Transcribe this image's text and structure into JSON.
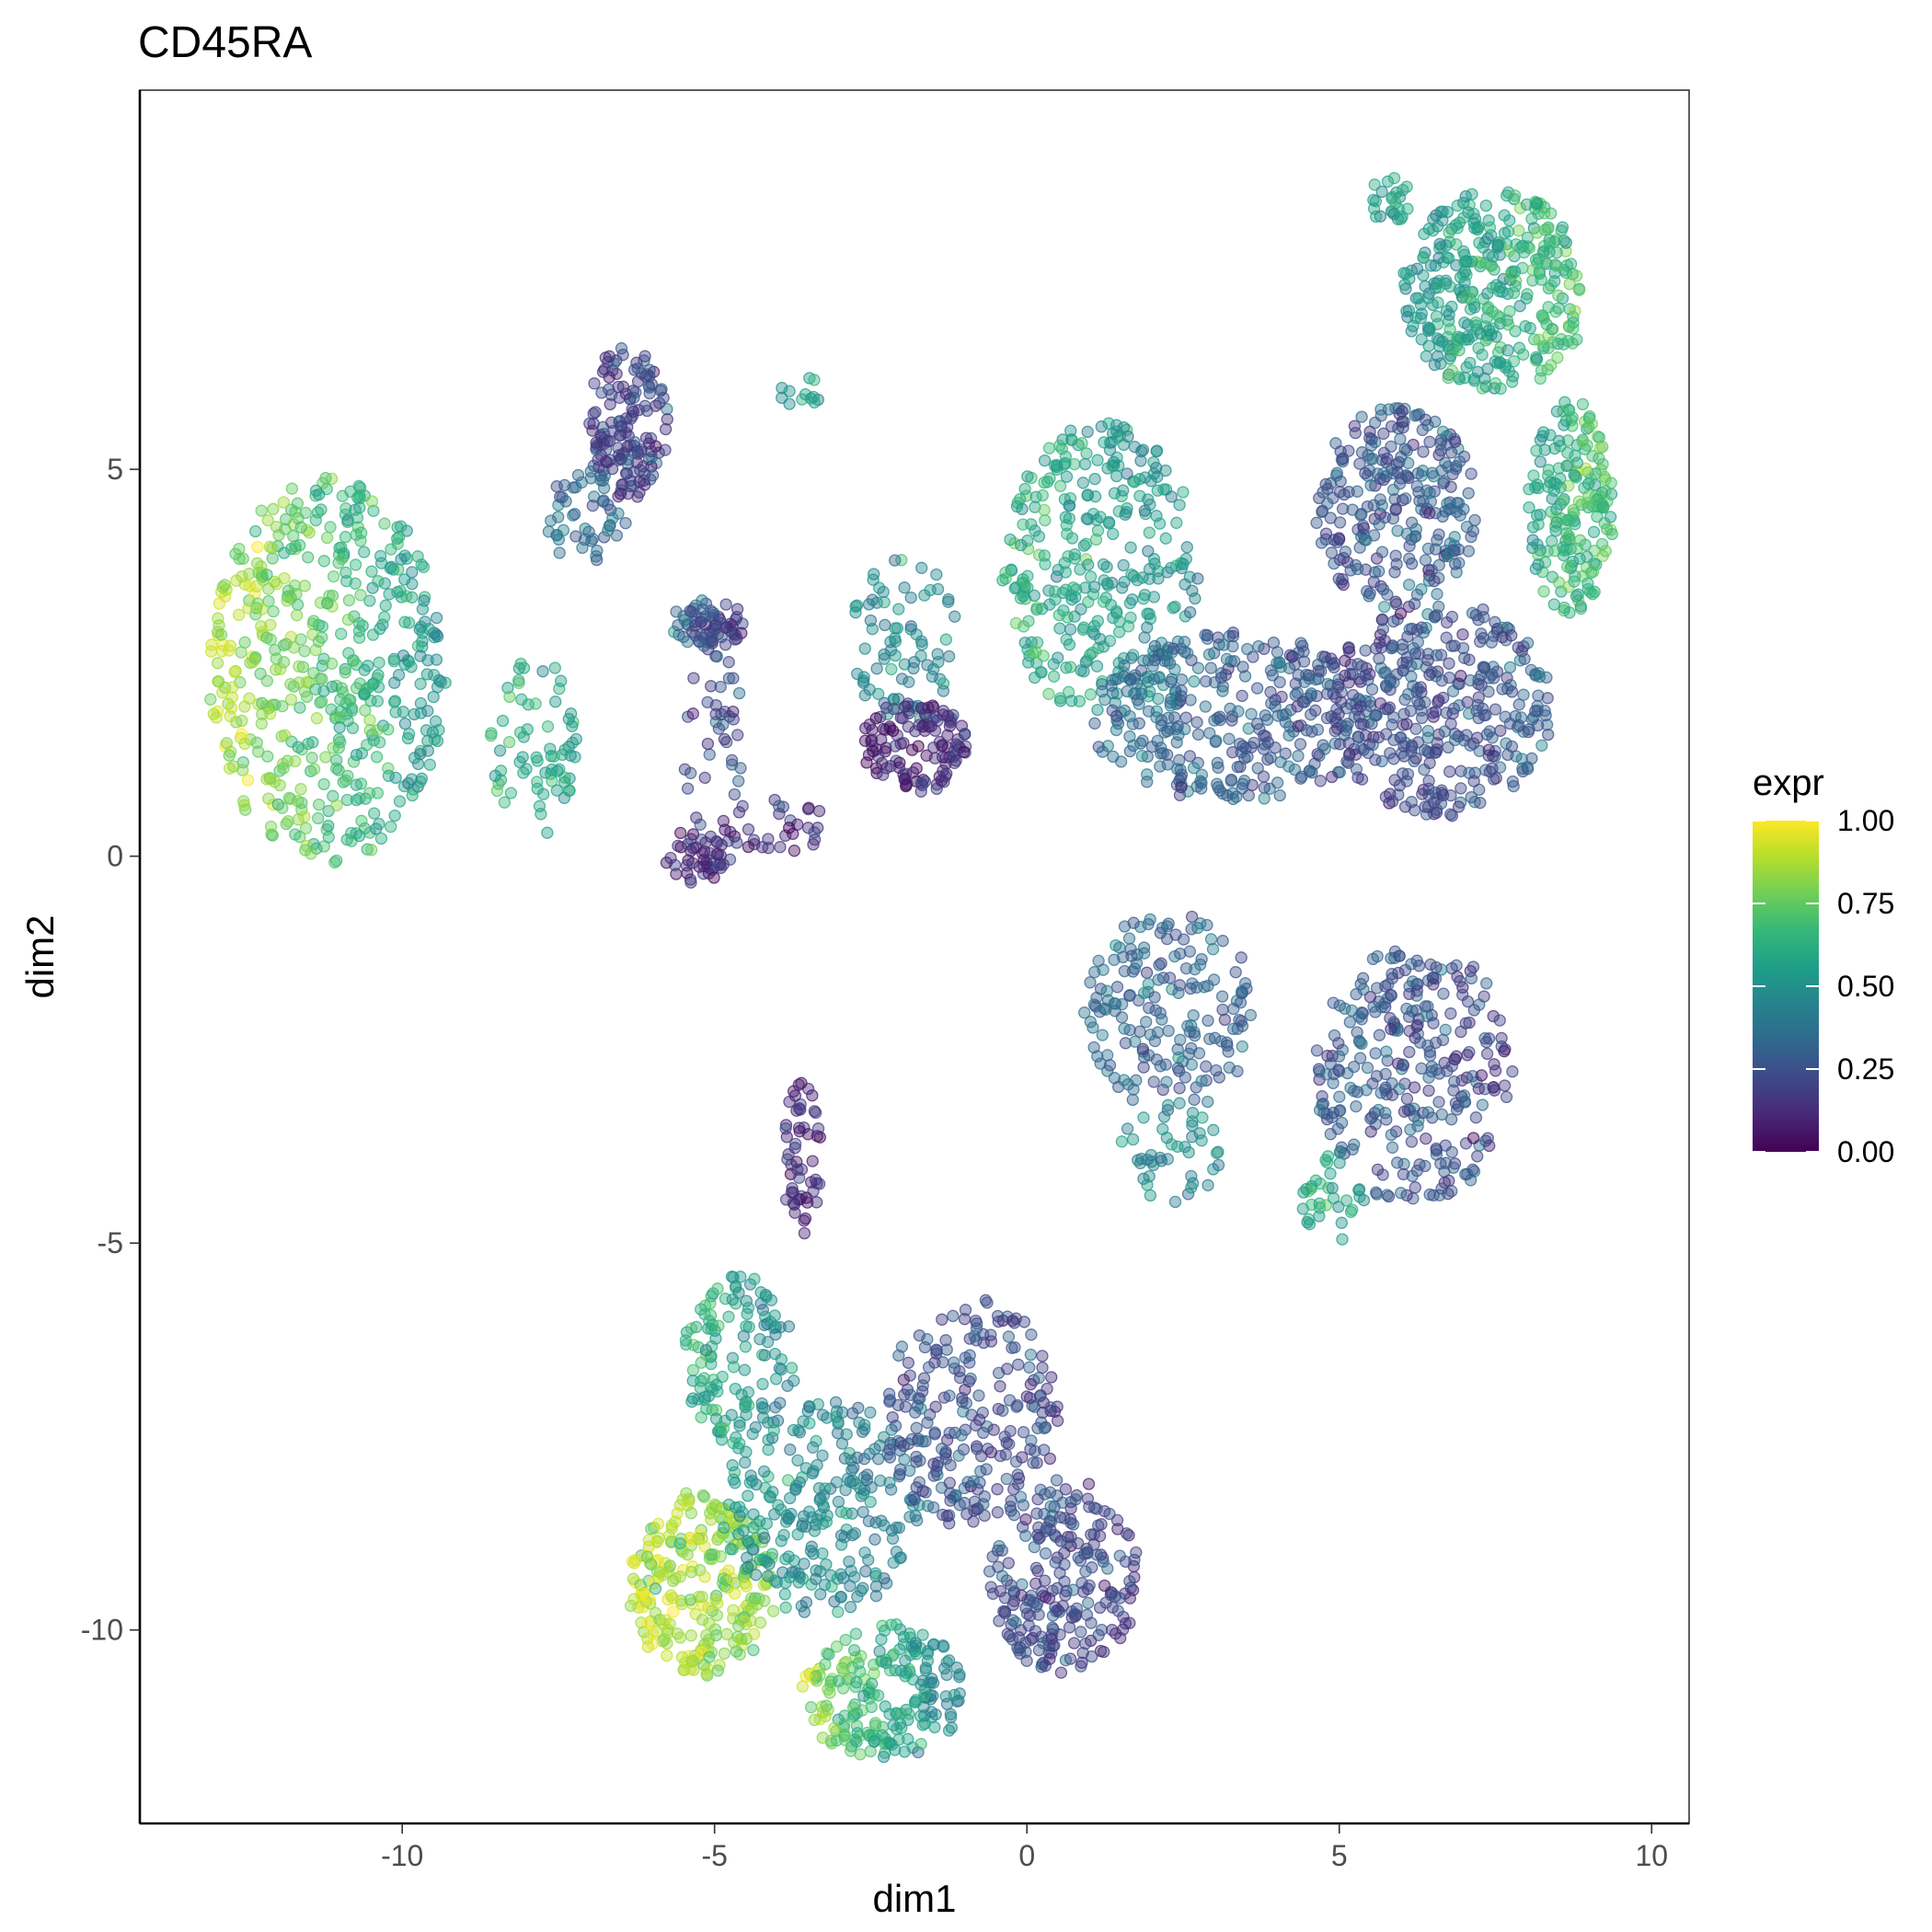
{
  "chart_data": {
    "type": "scatter",
    "title": "CD45RA",
    "xlabel": "dim1",
    "ylabel": "dim2",
    "xlim": [
      -14.2,
      10.6
    ],
    "ylim": [
      -12.5,
      9.9
    ],
    "x_ticks": [
      -10,
      -5,
      0,
      5,
      10
    ],
    "x_tick_labels": [
      "-10",
      "-5",
      "0",
      "5",
      "10"
    ],
    "y_ticks": [
      -10,
      -5,
      0,
      5
    ],
    "y_tick_labels": [
      "-10",
      "-5",
      "0",
      "5"
    ],
    "grid": false,
    "legend": {
      "title": "expr",
      "position": "right",
      "colormap": "viridis",
      "range": [
        0,
        1
      ],
      "ticks": [
        0,
        0.25,
        0.5,
        0.75,
        1
      ],
      "tick_labels": [
        "0.00",
        "0.25",
        "0.50",
        "0.75",
        "1.00"
      ]
    },
    "colors": {
      "viridis": [
        "#440154",
        "#482878",
        "#3e4989",
        "#31688e",
        "#26828e",
        "#1f9e89",
        "#35b779",
        "#6ece58",
        "#b5de2b",
        "#fde725"
      ]
    },
    "clusters": [
      {
        "cx": -11.2,
        "cy": 2.4,
        "rx": 1.9,
        "ry": 2.5,
        "n": 520,
        "expr_left": 0.9,
        "expr_right": 0.5
      },
      {
        "cx": -7.9,
        "cy": 1.4,
        "rx": 0.7,
        "ry": 1.2,
        "n": 70,
        "expr_left": 0.65,
        "expr_right": 0.55
      },
      {
        "cx": -6.4,
        "cy": 5.6,
        "rx": 0.65,
        "ry": 1.0,
        "n": 150,
        "expr_left": 0.2,
        "expr_right": 0.2
      },
      {
        "cx": -7.1,
        "cy": 4.4,
        "rx": 0.7,
        "ry": 0.6,
        "n": 50,
        "expr_left": 0.35,
        "expr_right": 0.35
      },
      {
        "cx": -5.1,
        "cy": 3.0,
        "rx": 0.6,
        "ry": 0.35,
        "n": 70,
        "expr_left": 0.4,
        "expr_right": 0.1
      },
      {
        "cx": -5.0,
        "cy": 1.2,
        "rx": 0.5,
        "ry": 1.5,
        "n": 45,
        "expr_left": 0.22,
        "expr_right": 0.22
      },
      {
        "cx": -5.3,
        "cy": 0.0,
        "rx": 0.5,
        "ry": 0.35,
        "n": 45,
        "expr_left": 0.12,
        "expr_right": 0.12
      },
      {
        "cx": -4.0,
        "cy": 0.4,
        "rx": 0.9,
        "ry": 0.35,
        "n": 30,
        "expr_left": 0.15,
        "expr_right": 0.15
      },
      {
        "cx": -3.6,
        "cy": 6.0,
        "rx": 0.4,
        "ry": 0.2,
        "n": 12,
        "expr_left": 0.5,
        "expr_right": 0.6
      },
      {
        "cx": -2.0,
        "cy": 2.8,
        "rx": 0.9,
        "ry": 1.1,
        "n": 80,
        "expr_left": 0.5,
        "expr_right": 0.45
      },
      {
        "cx": -1.8,
        "cy": 1.4,
        "rx": 0.9,
        "ry": 0.6,
        "n": 120,
        "expr_left": 0.08,
        "expr_right": 0.15
      },
      {
        "cx": 1.2,
        "cy": 3.7,
        "rx": 1.6,
        "ry": 1.9,
        "n": 330,
        "expr_left": 0.65,
        "expr_right": 0.45
      },
      {
        "cx": 3.3,
        "cy": 1.8,
        "rx": 2.3,
        "ry": 1.1,
        "n": 340,
        "expr_left": 0.35,
        "expr_right": 0.25
      },
      {
        "cx": 6.6,
        "cy": 1.9,
        "rx": 1.8,
        "ry": 1.4,
        "n": 360,
        "expr_left": 0.2,
        "expr_right": 0.3
      },
      {
        "cx": 5.9,
        "cy": 4.5,
        "rx": 1.3,
        "ry": 1.3,
        "n": 260,
        "expr_left": 0.25,
        "expr_right": 0.3
      },
      {
        "cx": 7.5,
        "cy": 7.3,
        "rx": 1.5,
        "ry": 1.3,
        "n": 360,
        "expr_left": 0.5,
        "expr_right": 0.72
      },
      {
        "cx": 8.7,
        "cy": 4.5,
        "rx": 0.7,
        "ry": 1.4,
        "n": 190,
        "expr_left": 0.55,
        "expr_right": 0.72
      },
      {
        "cx": 5.8,
        "cy": 8.5,
        "rx": 0.4,
        "ry": 0.3,
        "n": 24,
        "expr_left": 0.55,
        "expr_right": 0.55
      },
      {
        "cx": 2.3,
        "cy": -2.0,
        "rx": 1.4,
        "ry": 1.3,
        "n": 180,
        "expr_left": 0.35,
        "expr_right": 0.3
      },
      {
        "cx": 2.3,
        "cy": -3.8,
        "rx": 0.8,
        "ry": 0.7,
        "n": 45,
        "expr_left": 0.5,
        "expr_right": 0.45
      },
      {
        "cx": 6.2,
        "cy": -2.8,
        "rx": 1.6,
        "ry": 1.7,
        "n": 300,
        "expr_left": 0.3,
        "expr_right": 0.2
      },
      {
        "cx": 4.9,
        "cy": -4.4,
        "rx": 0.5,
        "ry": 0.6,
        "n": 35,
        "expr_left": 0.6,
        "expr_right": 0.55
      },
      {
        "cx": -3.6,
        "cy": -3.9,
        "rx": 0.3,
        "ry": 1.0,
        "n": 55,
        "expr_left": 0.1,
        "expr_right": 0.15
      },
      {
        "cx": -4.6,
        "cy": -6.5,
        "rx": 0.9,
        "ry": 1.1,
        "n": 130,
        "expr_left": 0.65,
        "expr_right": 0.45
      },
      {
        "cx": -5.2,
        "cy": -9.4,
        "rx": 1.2,
        "ry": 1.2,
        "n": 250,
        "expr_left": 0.9,
        "expr_right": 0.8
      },
      {
        "cx": -3.3,
        "cy": -8.4,
        "rx": 1.6,
        "ry": 1.4,
        "n": 260,
        "expr_left": 0.55,
        "expr_right": 0.4
      },
      {
        "cx": -2.3,
        "cy": -10.8,
        "rx": 1.3,
        "ry": 0.9,
        "n": 210,
        "expr_left": 0.85,
        "expr_right": 0.4
      },
      {
        "cx": -0.9,
        "cy": -7.2,
        "rx": 1.4,
        "ry": 1.5,
        "n": 230,
        "expr_left": 0.25,
        "expr_right": 0.22
      },
      {
        "cx": 0.6,
        "cy": -9.3,
        "rx": 1.2,
        "ry": 1.3,
        "n": 230,
        "expr_left": 0.25,
        "expr_right": 0.2
      }
    ]
  }
}
